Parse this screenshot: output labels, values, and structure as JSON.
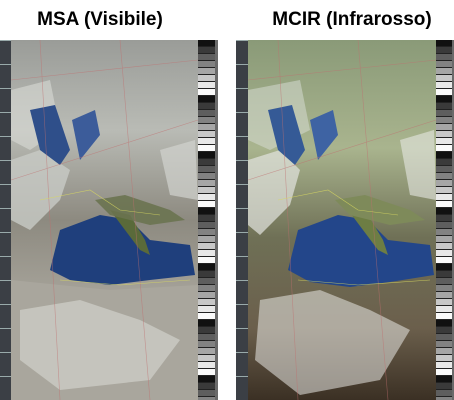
{
  "panels": [
    {
      "title": "MSA (Visibile)"
    },
    {
      "title": "MCIR (Infrarosso)"
    }
  ]
}
